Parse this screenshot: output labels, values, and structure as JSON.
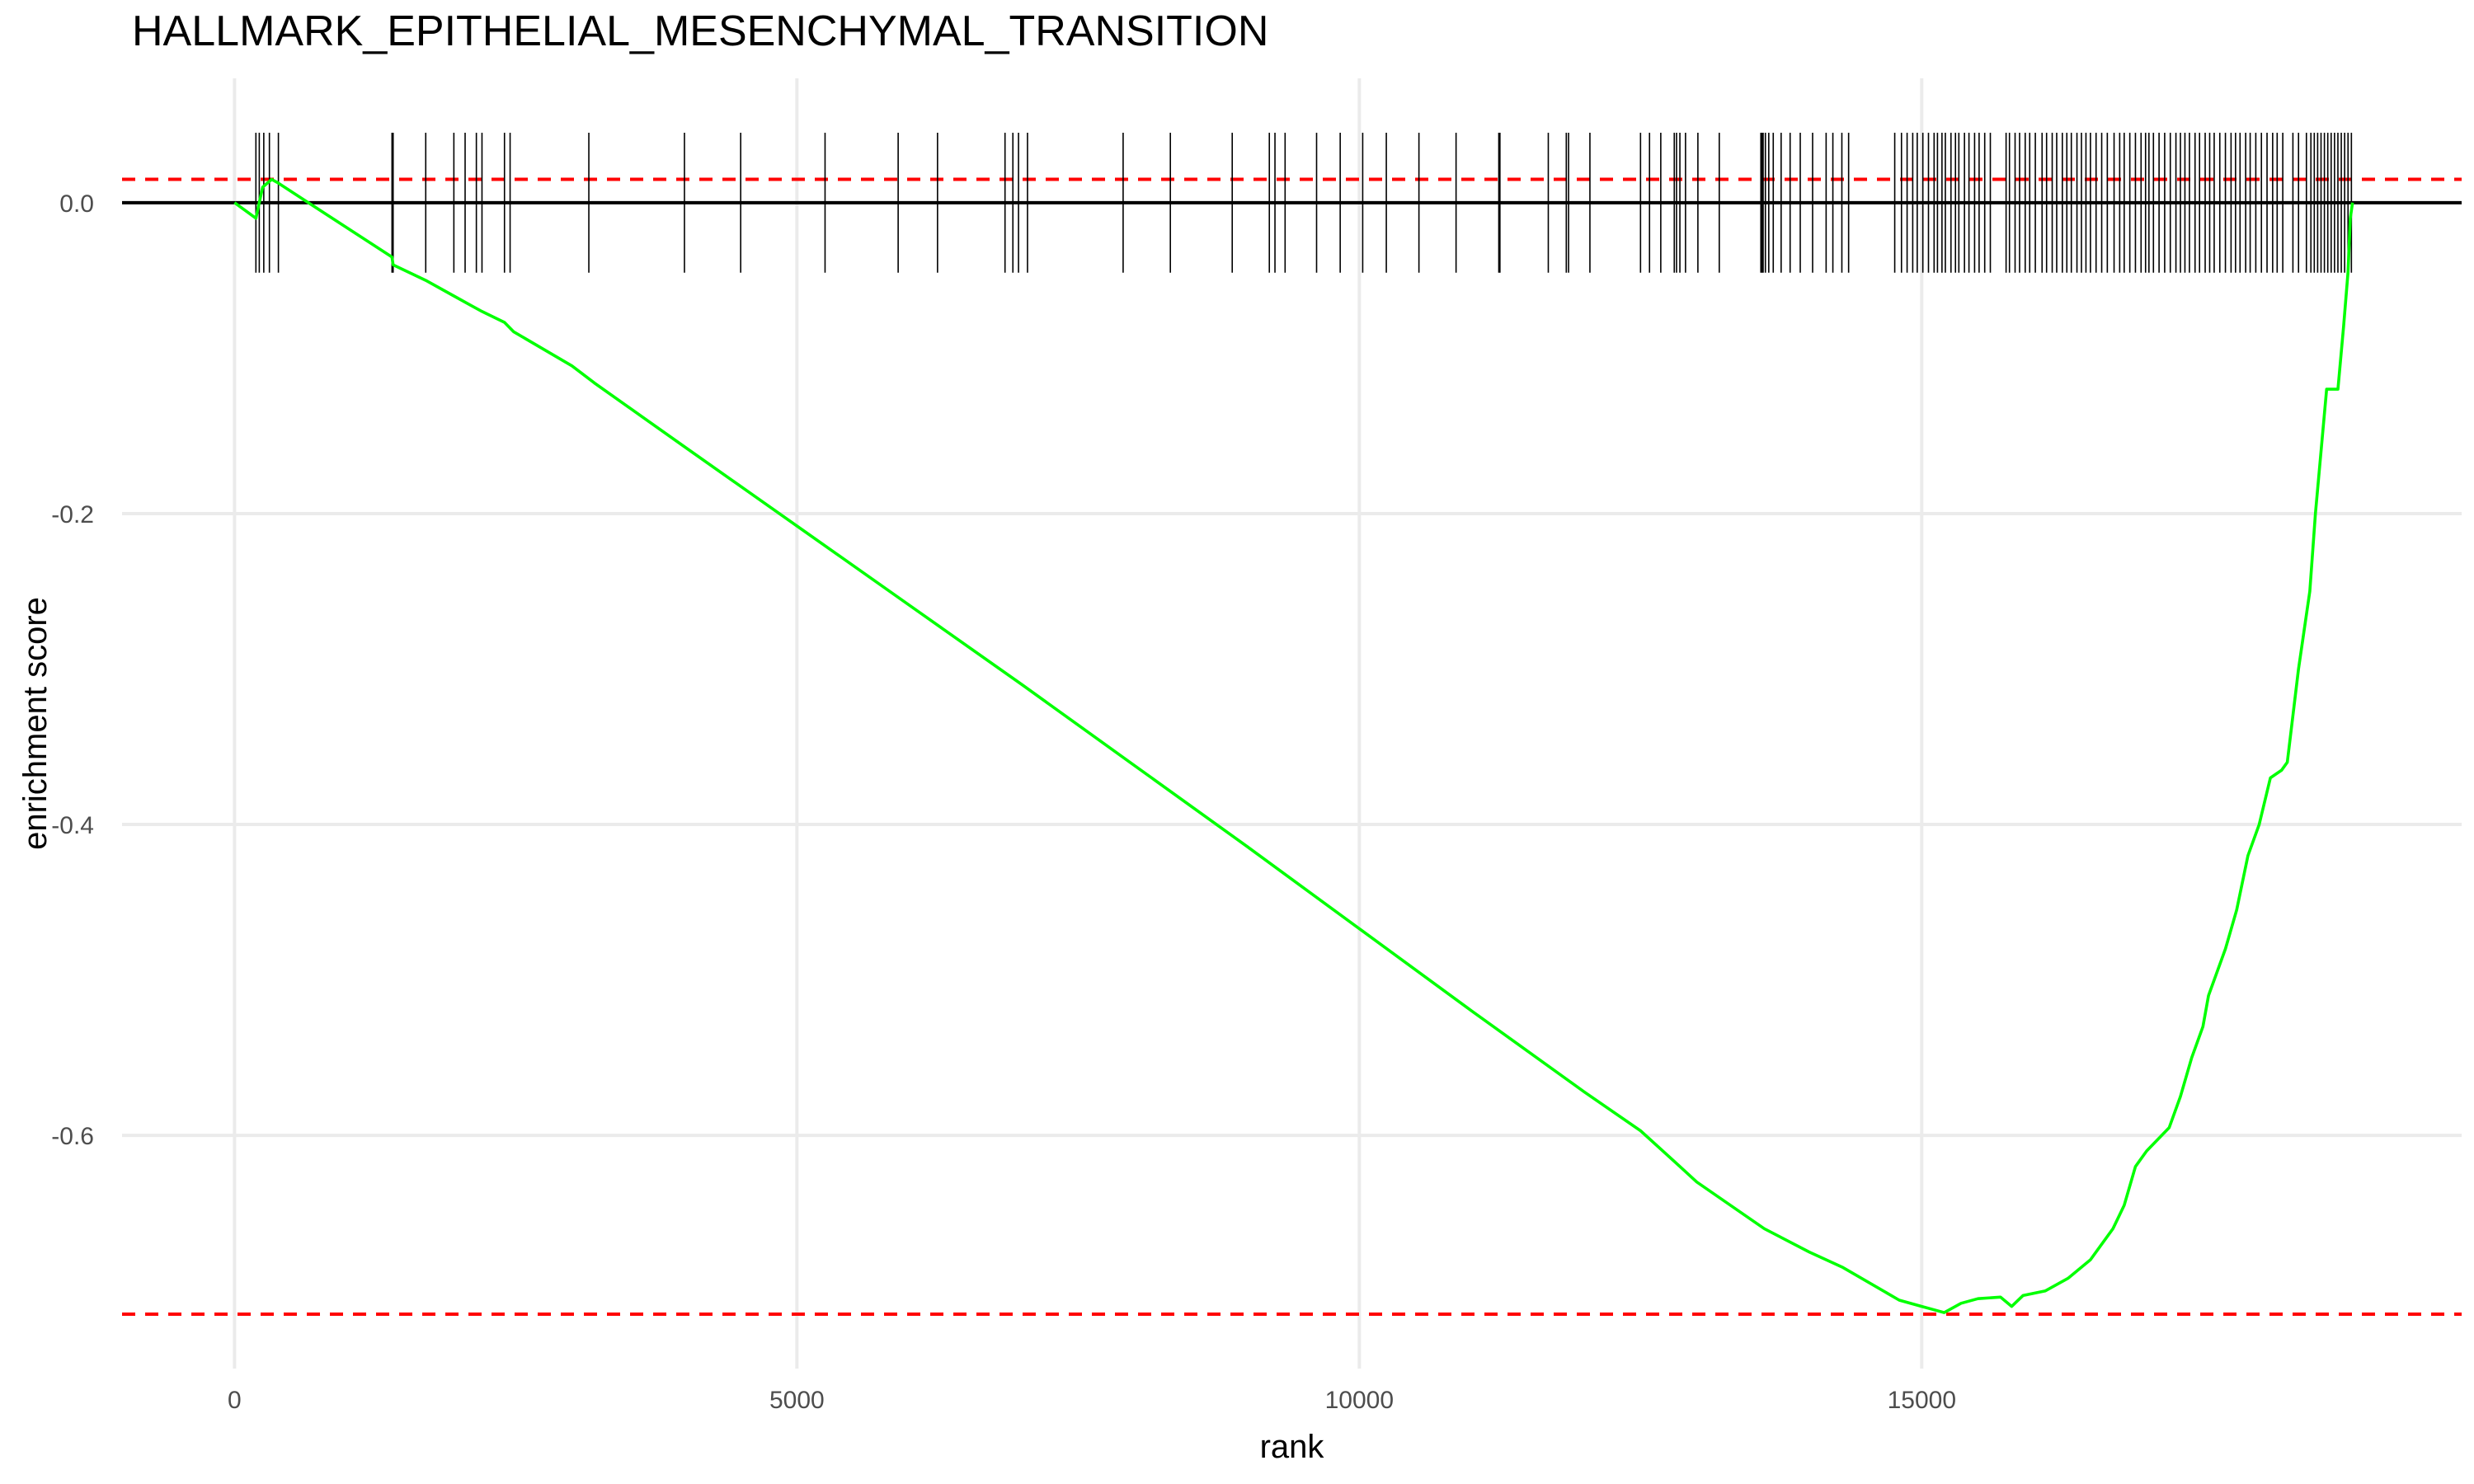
{
  "chart_data": {
    "type": "line",
    "title": "HALLMARK_EPITHELIAL_MESENCHYMAL_TRANSITION",
    "xlabel": "rank",
    "ylabel": "enrichment score",
    "xlim": [
      -1000,
      19800
    ],
    "ylim": [
      -0.75,
      0.08
    ],
    "x_ticks": [
      0,
      5000,
      10000,
      15000
    ],
    "x_tick_labels": [
      "0",
      "5000",
      "10000",
      "15000"
    ],
    "y_ticks": [
      0.0,
      -0.2,
      -0.4,
      -0.6
    ],
    "y_tick_labels": [
      "0.0",
      "-0.2",
      "-0.4",
      "-0.6"
    ],
    "grid": true,
    "background": "#ffffff",
    "colors": {
      "curve": "#00ff00",
      "bounds": "#ff0000",
      "zero_line": "#000000",
      "ticks": "#000000",
      "grid": "#ebebeb"
    },
    "reference_lines": {
      "zero": 0.0,
      "max_es": 0.015,
      "min_es": -0.715
    },
    "series": [
      {
        "values_x": [
          0,
          190,
          220,
          250,
          330,
          380,
          1400,
          1410,
          1700,
          1950,
          2100,
          2200,
          2400,
          2480,
          3000,
          3200,
          4000,
          5000,
          6000,
          7000,
          8000,
          9000,
          10000,
          11000,
          12000,
          12500,
          12850,
          13000,
          13600,
          14000,
          14300,
          14800,
          15000,
          15100,
          15200,
          15350,
          15500,
          15700,
          15800,
          15900,
          16100,
          16300,
          16500,
          16700,
          16800,
          16900,
          17000,
          17200,
          17300,
          17400,
          17500,
          17550,
          17700,
          17800,
          17900,
          18000,
          18100,
          18200,
          18250,
          18350,
          18450,
          18500,
          18600,
          18700,
          18750,
          18790,
          18810,
          18830
        ],
        "values_y": [
          0.0,
          -0.01,
          0.0,
          0.01,
          0.015,
          0.013,
          -0.035,
          -0.04,
          -0.05,
          -0.06,
          -0.066,
          -0.07,
          -0.077,
          -0.083,
          -0.105,
          -0.116,
          -0.157,
          -0.208,
          -0.259,
          -0.31,
          -0.362,
          -0.414,
          -0.467,
          -0.52,
          -0.572,
          -0.597,
          -0.62,
          -0.63,
          -0.66,
          -0.675,
          -0.685,
          -0.706,
          -0.71,
          -0.712,
          -0.714,
          -0.708,
          -0.705,
          -0.704,
          -0.71,
          -0.703,
          -0.7,
          -0.692,
          -0.68,
          -0.66,
          -0.645,
          -0.62,
          -0.61,
          -0.595,
          -0.575,
          -0.55,
          -0.53,
          -0.51,
          -0.48,
          -0.455,
          -0.42,
          -0.4,
          -0.37,
          -0.365,
          -0.36,
          -0.3,
          -0.25,
          -0.2,
          -0.12,
          -0.12,
          -0.08,
          -0.045,
          -0.01,
          0.0
        ]
      }
    ],
    "hits": [
      190,
      220,
      260,
      310,
      390,
      1400,
      1410,
      1700,
      1950,
      2050,
      2150,
      2200,
      2400,
      2450,
      3150,
      4000,
      4500,
      5250,
      5900,
      6250,
      6850,
      6920,
      6970,
      7050,
      7900,
      8320,
      8870,
      9200,
      9250,
      9340,
      9620,
      9830,
      10030,
      10240,
      10530,
      10860,
      11240,
      11250,
      11680,
      11840,
      11860,
      12050,
      12500,
      12580,
      12680,
      12800,
      12820,
      12850,
      12900,
      13010,
      13200,
      13570,
      13580,
      13590,
      13610,
      13640,
      13680,
      13750,
      13830,
      13920,
      14030,
      14150,
      14210,
      14290,
      14350,
      14760,
      14820,
      14870,
      14920,
      14960,
      15010,
      15060,
      15110,
      15140,
      15180,
      15210,
      15260,
      15300,
      15330,
      15380,
      15420,
      15470,
      15510,
      15560,
      15610,
      15750,
      15780,
      15830,
      15870,
      15920,
      15960,
      16010,
      16070,
      16110,
      16160,
      16200,
      16250,
      16290,
      16330,
      16380,
      16420,
      16460,
      16500,
      16550,
      16600,
      16650,
      16710,
      16760,
      16800,
      16850,
      16900,
      16950,
      16990,
      17020,
      17060,
      17110,
      17160,
      17210,
      17260,
      17300,
      17340,
      17380,
      17430,
      17470,
      17520,
      17560,
      17600,
      17650,
      17700,
      17750,
      17790,
      17830,
      17880,
      17920,
      17970,
      18020,
      18070,
      18120,
      18160,
      18210,
      18300,
      18350,
      18420,
      18460,
      18490,
      18520,
      18550,
      18580,
      18610,
      18640,
      18670,
      18700,
      18730,
      18760,
      18790,
      18820
    ],
    "hit_mark_range": [
      -0.045,
      0.045
    ]
  }
}
